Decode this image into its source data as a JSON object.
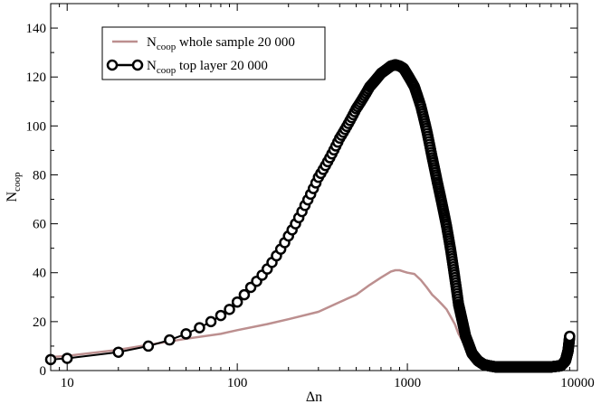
{
  "chart_data": {
    "type": "line",
    "xscale": "log",
    "xlim": [
      8,
      10000
    ],
    "ylim": [
      0,
      150
    ],
    "xlabel": "Δn",
    "ylabel": {
      "main": "N",
      "sub": "coop"
    },
    "xticks": [
      10,
      100,
      1000,
      10000
    ],
    "xtick_labels": [
      "10",
      "100",
      "1000",
      "10000"
    ],
    "yticks": [
      0,
      20,
      40,
      60,
      80,
      100,
      120,
      140
    ],
    "ytick_labels": [
      "0",
      "20",
      "40",
      "60",
      "80",
      "100",
      "120",
      "140"
    ],
    "grid": false,
    "legend_position": "top-left",
    "series": [
      {
        "name": "whole sample 20 000",
        "label_main": "N",
        "label_sub": "coop",
        "label_rest": " whole sample 20 000",
        "color": "#bc8f8f",
        "marker": "none",
        "x": [
          8,
          10,
          20,
          30,
          50,
          80,
          100,
          150,
          200,
          300,
          400,
          500,
          600,
          700,
          800,
          850,
          900,
          950,
          1000,
          1100,
          1200,
          1300,
          1400,
          1500,
          1600,
          1700,
          1800,
          1900,
          2000,
          2200,
          2500,
          2800,
          3000,
          3300,
          3600,
          4000,
          5000,
          6000,
          7000,
          8000,
          8500,
          9000
        ],
        "y": [
          5.5,
          6,
          8.5,
          10.5,
          13,
          15,
          16.5,
          19,
          21,
          24,
          28,
          31,
          35,
          38,
          40.5,
          41,
          41,
          40.5,
          40,
          39.5,
          37,
          34,
          31,
          29,
          27,
          25,
          22,
          19,
          15,
          10,
          6,
          3.5,
          2.5,
          2,
          1.8,
          1.5,
          1.5,
          1.5,
          1.5,
          1.5,
          2,
          3
        ]
      },
      {
        "name": "top layer 20 000",
        "label_main": "N",
        "label_sub": "coop",
        "label_rest": " top layer 20 000",
        "color": "#000000",
        "marker": "circle",
        "x": [
          8,
          10,
          20,
          30,
          40,
          50,
          60,
          70,
          80,
          90,
          100,
          120,
          150,
          200,
          250,
          300,
          400,
          500,
          600,
          700,
          800,
          850,
          900,
          950,
          1000,
          1100,
          1200,
          1300,
          1400,
          1500,
          1600,
          1700,
          1800,
          1900,
          2000,
          2200,
          2400,
          2600,
          2800,
          3000,
          3300,
          3600,
          4000,
          5000,
          6000,
          7000,
          8000,
          8500,
          8800,
          9000
        ],
        "y": [
          4.5,
          5,
          7.5,
          10,
          12.5,
          15,
          17.5,
          20,
          22.5,
          25,
          28,
          34,
          41.5,
          55,
          67.5,
          79,
          95,
          107,
          116,
          121.5,
          124.5,
          125,
          124.5,
          123.5,
          121,
          116,
          108,
          98,
          87,
          77,
          68,
          59,
          49,
          38,
          27,
          14,
          7,
          4,
          2.5,
          2,
          1.5,
          1.5,
          1.5,
          1.5,
          1.5,
          1.5,
          2,
          4,
          8,
          14
        ]
      }
    ]
  }
}
